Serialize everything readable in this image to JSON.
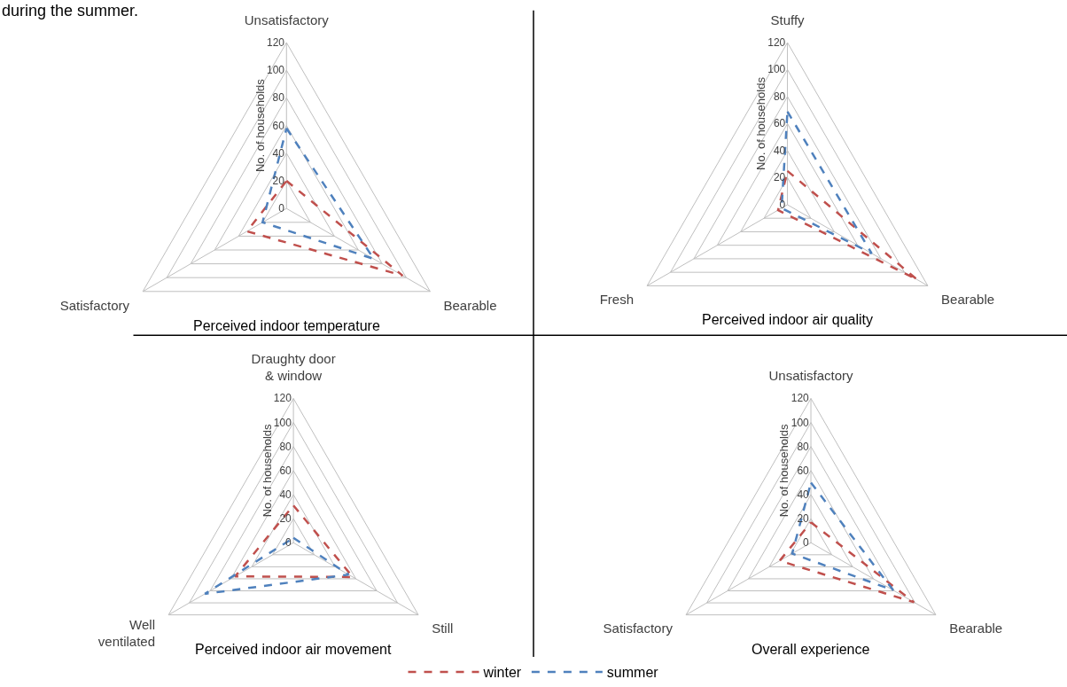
{
  "chart_data": [
    {
      "type": "radar",
      "title": "Perceived indoor temperature",
      "ylabel": "No. of households",
      "annotations": [
        "during the summer."
      ],
      "categories": [
        "Unsatisfactory",
        "Bearable",
        "Satisfactory"
      ],
      "ylim": [
        0,
        120
      ],
      "yticks": [
        0,
        20,
        40,
        60,
        80,
        100,
        120
      ],
      "line_style": "dashed",
      "marker": "none",
      "legend": "bottom",
      "series": [
        {
          "name": "winter",
          "color": "#c0504d",
          "values": [
            20,
            97,
            33
          ]
        },
        {
          "name": "summer",
          "color": "#4f81bd",
          "values": [
            58,
            73,
            20
          ]
        }
      ]
    },
    {
      "type": "radar",
      "title": "Perceived indoor air quality",
      "ylabel": "No. of households",
      "categories": [
        "Stuffy",
        "Bearable",
        "Fresh"
      ],
      "ylim": [
        0,
        120
      ],
      "yticks": [
        0,
        20,
        40,
        60,
        80,
        100,
        120
      ],
      "line_style": "dashed",
      "marker": "none",
      "legend": "bottom",
      "series": [
        {
          "name": "winter",
          "color": "#c0504d",
          "values": [
            25,
            111,
            8
          ]
        },
        {
          "name": "summer",
          "color": "#4f81bd",
          "values": [
            69,
            72,
            5
          ]
        }
      ]
    },
    {
      "type": "radar",
      "title": "Perceived indoor air movement",
      "ylabel": "No. of households",
      "categories": [
        "Draughty door & window",
        "Still",
        "Well ventilated"
      ],
      "ylim": [
        0,
        120
      ],
      "yticks": [
        0,
        20,
        40,
        60,
        80,
        100,
        120
      ],
      "line_style": "dashed",
      "marker": "none",
      "legend": "bottom",
      "series": [
        {
          "name": "winter",
          "color": "#c0504d",
          "values": [
            31,
            57,
            56
          ]
        },
        {
          "name": "summer",
          "color": "#4f81bd",
          "values": [
            4,
            53,
            85
          ]
        }
      ]
    },
    {
      "type": "radar",
      "title": "Overall experience",
      "ylabel": "No. of households",
      "categories": [
        "Unsatisfactory",
        "Bearable",
        "Satisfactory"
      ],
      "ylim": [
        0,
        120
      ],
      "yticks": [
        0,
        20,
        40,
        60,
        80,
        100,
        120
      ],
      "line_style": "dashed",
      "marker": "none",
      "legend": "bottom",
      "series": [
        {
          "name": "winter",
          "color": "#c0504d",
          "values": [
            17,
            99,
            30
          ]
        },
        {
          "name": "summer",
          "color": "#4f81bd",
          "values": [
            50,
            79,
            18
          ]
        }
      ]
    }
  ]
}
